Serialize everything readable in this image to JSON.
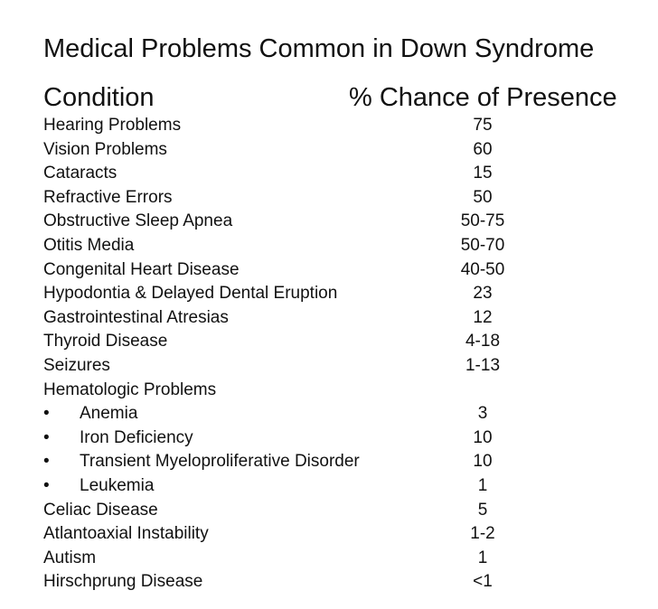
{
  "title": "Medical Problems Common in Down Syndrome",
  "headers": {
    "condition": "Condition",
    "percent": "% Chance of Presence"
  },
  "bullet_char": "•",
  "rows": [
    {
      "label": "Hearing Problems",
      "value": "75",
      "sub": false
    },
    {
      "label": "Vision Problems",
      "value": "60",
      "sub": false
    },
    {
      "label": "Cataracts",
      "value": "15",
      "sub": false
    },
    {
      "label": "Refractive Errors",
      "value": "50",
      "sub": false
    },
    {
      "label": "Obstructive Sleep Apnea",
      "value": "50-75",
      "sub": false
    },
    {
      "label": "Otitis Media",
      "value": "50-70",
      "sub": false
    },
    {
      "label": "Congenital Heart Disease",
      "value": "40-50",
      "sub": false
    },
    {
      "label": "Hypodontia & Delayed Dental Eruption",
      "value": "23",
      "sub": false
    },
    {
      "label": "Gastrointestinal Atresias",
      "value": "12",
      "sub": false
    },
    {
      "label": "Thyroid Disease",
      "value": "4-18",
      "sub": false
    },
    {
      "label": "Seizures",
      "value": "1-13",
      "sub": false
    },
    {
      "label": "Hematologic Problems",
      "value": "",
      "sub": false
    },
    {
      "label": "Anemia",
      "value": "3",
      "sub": true
    },
    {
      "label": "Iron Deficiency",
      "value": "10",
      "sub": true
    },
    {
      "label": "Transient Myeloproliferative Disorder",
      "value": "10",
      "sub": true
    },
    {
      "label": "Leukemia",
      "value": "1",
      "sub": true
    },
    {
      "label": "Celiac Disease",
      "value": "5",
      "sub": false
    },
    {
      "label": "Atlantoaxial Instability",
      "value": "1-2",
      "sub": false
    },
    {
      "label": "Autism",
      "value": "1",
      "sub": false
    },
    {
      "label": "Hirschprung Disease",
      "value": "<1",
      "sub": false
    }
  ]
}
